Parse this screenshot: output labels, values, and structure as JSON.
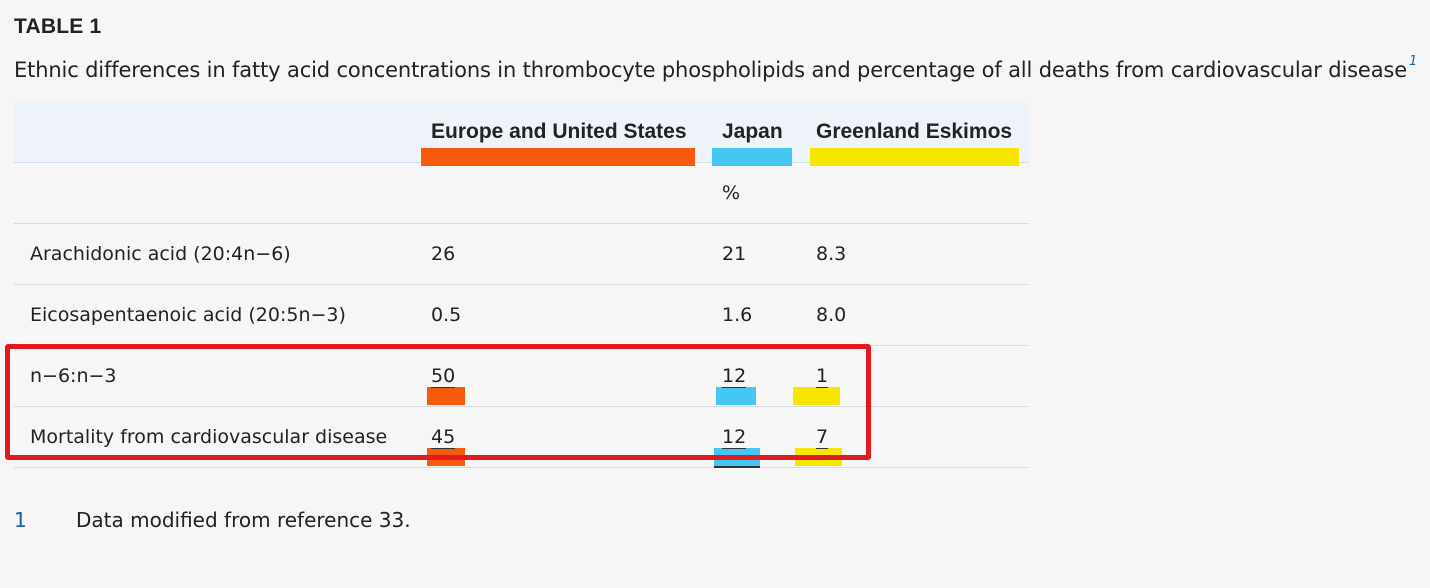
{
  "table": {
    "label": "TABLE 1",
    "caption": "Ethnic differences in fatty acid concentrations in thrombocyte phospholipids and percentage of all deaths from cardiovascular disease",
    "caption_ref": "1",
    "columns": [
      "",
      "Europe and United States",
      "Japan",
      "Greenland Eskimos"
    ],
    "unit_row": [
      "",
      "",
      "%",
      ""
    ],
    "rows": [
      {
        "label": "Arachidonic acid (20:4n−6)",
        "values": [
          "26",
          "21",
          "8.3"
        ]
      },
      {
        "label": "Eicosapentaenoic acid (20:5n−3)",
        "values": [
          "0.5",
          "1.6",
          "8.0"
        ]
      },
      {
        "label": "n−6:n−3",
        "values": [
          "50",
          "12",
          "1"
        ]
      },
      {
        "label": "Mortality from cardiovascular disease",
        "values": [
          "45",
          "12",
          "7"
        ]
      }
    ],
    "highlight_colors": {
      "europe": "#f65a0a",
      "japan": "#46c6f3",
      "greenland": "#f7e600",
      "box": "#e11a1f"
    }
  },
  "footnote": {
    "number": "1",
    "text": "Data modified from reference 33."
  }
}
